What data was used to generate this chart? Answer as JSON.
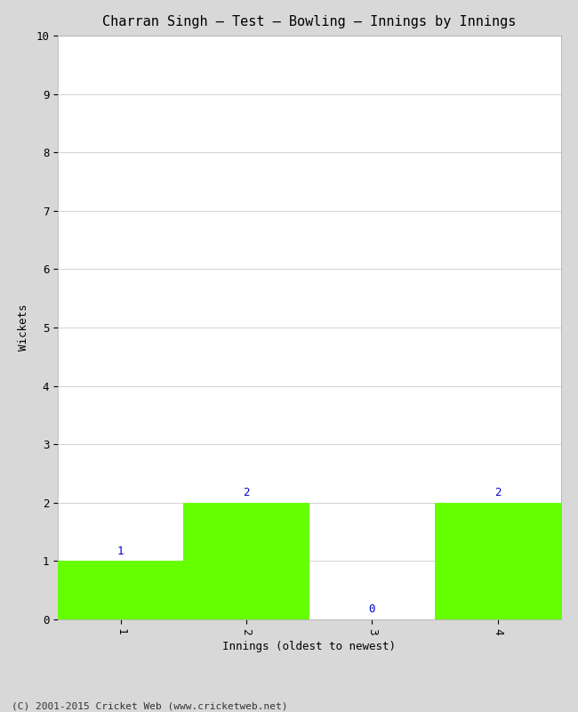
{
  "title": "Charran Singh – Test – Bowling – Innings by Innings",
  "xlabel": "Innings (oldest to newest)",
  "ylabel": "Wickets",
  "categories": [
    1,
    2,
    3,
    4
  ],
  "values": [
    1,
    2,
    0,
    2
  ],
  "bar_color": "#66ff00",
  "ylim": [
    0,
    10
  ],
  "yticks": [
    0,
    1,
    2,
    3,
    4,
    5,
    6,
    7,
    8,
    9,
    10
  ],
  "xticks": [
    1,
    2,
    3,
    4
  ],
  "background_color": "#d8d8d8",
  "plot_bg_color": "#ffffff",
  "label_color": "#0000cc",
  "copyright": "(C) 2001-2015 Cricket Web (www.cricketweb.net)",
  "title_fontsize": 11,
  "axis_label_fontsize": 9,
  "tick_fontsize": 9,
  "bar_label_fontsize": 9,
  "copyright_fontsize": 8,
  "bar_width": 1.0,
  "xlim": [
    0.5,
    4.5
  ]
}
